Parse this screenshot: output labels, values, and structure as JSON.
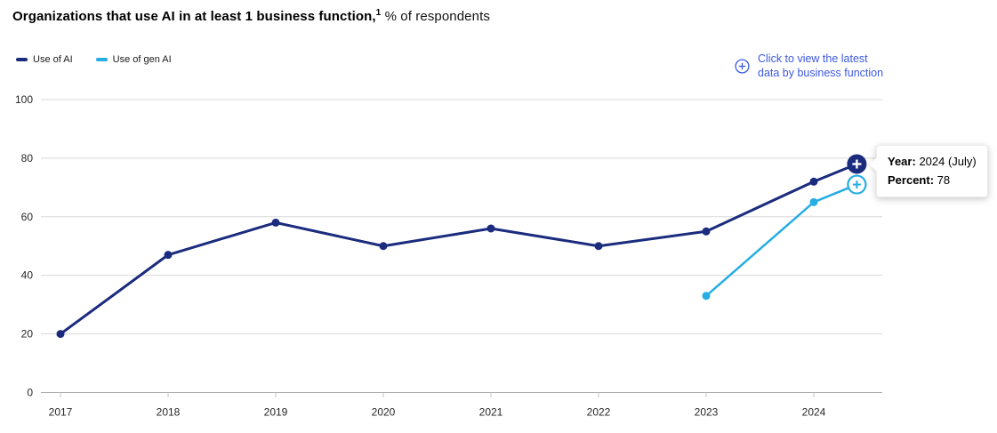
{
  "title": {
    "main": "Organizations that use AI in at least 1 business function,",
    "superscript": "1",
    "suffix": " % of respondents"
  },
  "legend": [
    {
      "label": "Use of AI",
      "color": "#1b2c7e"
    },
    {
      "label": "Use of gen AI",
      "color": "#25ade4"
    }
  ],
  "action_link": {
    "icon": "circled-plus-icon",
    "line1": "Click to view the latest",
    "line2": "data by business function",
    "color": "#3d59e1"
  },
  "tooltip": {
    "year_label": "Year:",
    "year_value": "2024 (July)",
    "percent_label": "Percent:",
    "percent_value": "78"
  },
  "chart_data": {
    "type": "line",
    "title": "Organizations that use AI in at least 1 business function, % of respondents",
    "x_ticks": [
      2017,
      2018,
      2019,
      2020,
      2021,
      2022,
      2023,
      2024
    ],
    "y_ticks": [
      0,
      20,
      40,
      60,
      80,
      100
    ],
    "ylim": [
      0,
      100
    ],
    "grid": "horizontal",
    "grid_color": "#d9d9d9",
    "axis_line_color": "#ababab",
    "tick_color": "#c6c6c6",
    "legend_position": "top-left",
    "series": [
      {
        "name": "Use of AI",
        "color": "#1b2c7e",
        "points": [
          {
            "x": 2017,
            "y": 20
          },
          {
            "x": 2018,
            "y": 47
          },
          {
            "x": 2019,
            "y": 58
          },
          {
            "x": 2020,
            "y": 50
          },
          {
            "x": 2021,
            "y": 56
          },
          {
            "x": 2022,
            "y": 50
          },
          {
            "x": 2023,
            "y": 55
          },
          {
            "x": 2024,
            "y": 72
          },
          {
            "x": 2024.4,
            "y": 78,
            "x_label": "2024 (July)",
            "marker": "plus-circle-filled"
          }
        ]
      },
      {
        "name": "Use of gen AI",
        "color": "#25ade4",
        "points": [
          {
            "x": 2023,
            "y": 33
          },
          {
            "x": 2024,
            "y": 65
          },
          {
            "x": 2024.4,
            "y": 71,
            "x_label": "2024 (July)",
            "marker": "plus-circle-outline"
          }
        ]
      }
    ]
  }
}
